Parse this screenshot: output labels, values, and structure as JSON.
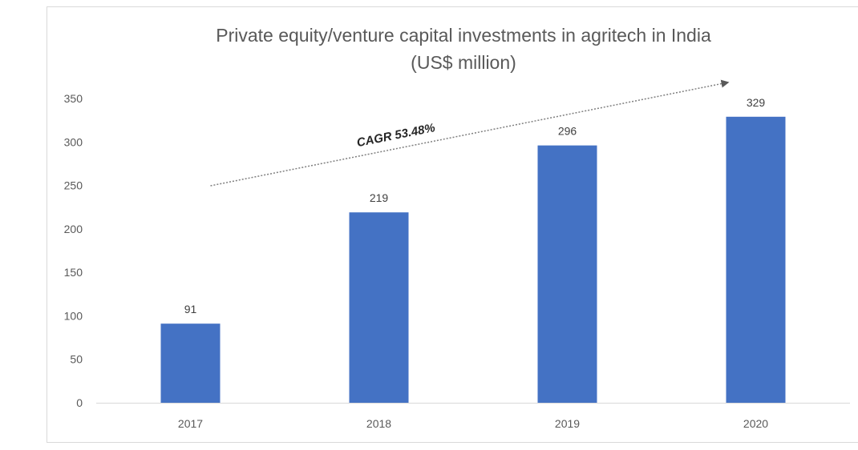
{
  "chart_data": {
    "type": "bar",
    "title_lines": [
      "Private equity/venture capital investments in agritech in India",
      "(US$ million)"
    ],
    "categories": [
      "2017",
      "2018",
      "2019",
      "2020"
    ],
    "values": [
      91,
      219,
      296,
      329
    ],
    "data_labels": [
      "91",
      "219",
      "296",
      "329"
    ],
    "ylim": [
      0,
      350
    ],
    "yticks": [
      0,
      50,
      100,
      150,
      200,
      250,
      300,
      350
    ],
    "grid": false,
    "legend": "none",
    "annotation": {
      "text": "CAGR 53.48%",
      "arrow_style": "dotted"
    },
    "colors": {
      "bar": "#4472C4",
      "axis": "#d9d9d9",
      "text": "#595959",
      "arrow": "#7f7f7f"
    }
  }
}
